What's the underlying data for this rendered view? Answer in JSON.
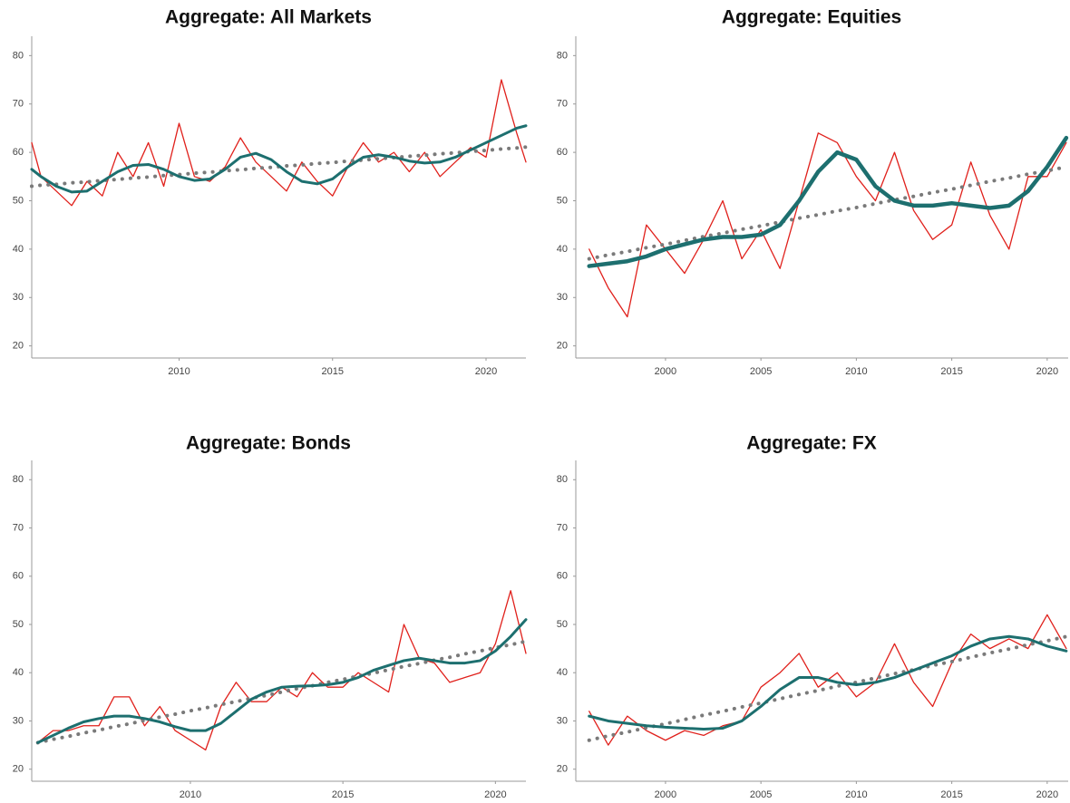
{
  "chart_data": [
    {
      "type": "line",
      "title": "Aggregate: All Markets",
      "x": [
        2005.2,
        2005.5,
        2006,
        2006.5,
        2007,
        2007.5,
        2008,
        2008.5,
        2009,
        2009.5,
        2010,
        2010.5,
        2011,
        2011.5,
        2012,
        2012.5,
        2013,
        2013.5,
        2014,
        2014.5,
        2015,
        2015.5,
        2016,
        2016.5,
        2017,
        2017.5,
        2018,
        2018.5,
        2019,
        2019.5,
        2020,
        2020.5,
        2021,
        2021.3
      ],
      "series": [
        {
          "color": "#e0201b",
          "style": "solid",
          "width": 1.3,
          "values": [
            62,
            55,
            52,
            49,
            54,
            51,
            60,
            55,
            62,
            53,
            66,
            55,
            54,
            57,
            63,
            58,
            55,
            52,
            58,
            54,
            51,
            57,
            62,
            58,
            60,
            56,
            60,
            55,
            58,
            61,
            59,
            75,
            64,
            58
          ]
        },
        {
          "color": "#7a7a7a",
          "style": "dotted",
          "width": 4,
          "values": [
            53,
            53.2,
            53.4,
            53.7,
            53.9,
            54.2,
            54.4,
            54.7,
            54.9,
            55.2,
            55.4,
            55.7,
            55.9,
            56.2,
            56.4,
            56.7,
            56.9,
            57.2,
            57.4,
            57.7,
            57.9,
            58.2,
            58.4,
            58.7,
            58.9,
            59.2,
            59.4,
            59.7,
            59.9,
            60.2,
            60.4,
            60.7,
            60.9,
            61.1
          ]
        },
        {
          "color": "#1d6f6f",
          "style": "solid",
          "width": 3,
          "values": [
            56.5,
            55,
            53,
            51.8,
            52,
            54,
            56,
            57.3,
            57.5,
            56.5,
            55,
            54.2,
            54.5,
            56.5,
            59,
            59.8,
            58.5,
            56,
            54,
            53.5,
            54.5,
            57,
            59,
            59.5,
            59,
            58.2,
            57.8,
            58,
            59,
            60.5,
            62,
            63.5,
            65,
            65.5
          ]
        }
      ],
      "xlim": [
        2005.2,
        2021.3
      ],
      "xticks": [
        2010,
        2015,
        2020
      ],
      "ylim": [
        17.5,
        84
      ],
      "yticks": [
        20,
        30,
        40,
        50,
        60,
        70,
        80
      ]
    },
    {
      "type": "line",
      "title": "Aggregate: Equities",
      "x": [
        1996,
        1997,
        1998,
        1999,
        2000,
        2001,
        2002,
        2003,
        2004,
        2005,
        2006,
        2007,
        2008,
        2009,
        2010,
        2011,
        2012,
        2013,
        2014,
        2015,
        2016,
        2017,
        2018,
        2019,
        2020,
        2021
      ],
      "series": [
        {
          "color": "#e0201b",
          "style": "solid",
          "width": 1.3,
          "values": [
            40,
            32,
            26,
            45,
            40,
            35,
            42,
            50,
            38,
            44,
            36,
            50,
            64,
            62,
            55,
            50,
            60,
            48,
            42,
            45,
            58,
            47,
            40,
            55,
            55,
            62
          ]
        },
        {
          "color": "#7a7a7a",
          "style": "dotted",
          "width": 4,
          "values": [
            38,
            38.8,
            39.5,
            40.3,
            41,
            41.8,
            42.6,
            43.3,
            44.1,
            44.8,
            45.6,
            46.4,
            47.1,
            47.9,
            48.6,
            49.4,
            50.2,
            50.9,
            51.7,
            52.4,
            53.2,
            54,
            54.7,
            55.5,
            56.2,
            57
          ]
        },
        {
          "color": "#1d6f6f",
          "style": "solid",
          "width": 4.5,
          "values": [
            36.5,
            37,
            37.5,
            38.5,
            40,
            41,
            42,
            42.5,
            42.5,
            43,
            45,
            50,
            56,
            60,
            58.5,
            53,
            50,
            49,
            49,
            49.5,
            49,
            48.5,
            49,
            52,
            57,
            63
          ]
        }
      ],
      "xlim": [
        1995.3,
        2021.1
      ],
      "xticks": [
        2000,
        2005,
        2010,
        2015,
        2020
      ],
      "ylim": [
        17.5,
        84
      ],
      "yticks": [
        20,
        30,
        40,
        50,
        60,
        70,
        80
      ]
    },
    {
      "type": "line",
      "title": "Aggregate: Bonds",
      "x": [
        2005,
        2005.5,
        2006,
        2006.5,
        2007,
        2007.5,
        2008,
        2008.5,
        2009,
        2009.5,
        2010,
        2010.5,
        2011,
        2011.5,
        2012,
        2012.5,
        2013,
        2013.5,
        2014,
        2014.5,
        2015,
        2015.5,
        2016,
        2016.5,
        2017,
        2017.5,
        2018,
        2018.5,
        2019,
        2019.5,
        2020,
        2020.5,
        2021
      ],
      "series": [
        {
          "color": "#e0201b",
          "style": "solid",
          "width": 1.3,
          "values": [
            25.5,
            28,
            28,
            29,
            29,
            35,
            35,
            29,
            33,
            28,
            26,
            24,
            33,
            38,
            34,
            34,
            37,
            35,
            40,
            37,
            37,
            40,
            38,
            36,
            50,
            43,
            42,
            38,
            39,
            40,
            46,
            57,
            44
          ]
        },
        {
          "color": "#7a7a7a",
          "style": "dotted",
          "width": 4,
          "values": [
            25.5,
            26.2,
            26.8,
            27.5,
            28.1,
            28.8,
            29.4,
            30.1,
            30.8,
            31.4,
            32.1,
            32.7,
            33.4,
            34.0,
            34.7,
            35.3,
            36.0,
            36.7,
            37.3,
            38.0,
            38.6,
            39.3,
            39.9,
            40.6,
            41.3,
            41.9,
            42.6,
            43.2,
            43.9,
            44.5,
            45.2,
            45.8,
            46.5
          ]
        },
        {
          "color": "#1d6f6f",
          "style": "solid",
          "width": 3,
          "values": [
            25.5,
            27,
            28.5,
            29.8,
            30.5,
            31,
            31,
            30.5,
            29.8,
            28.8,
            28,
            28,
            29.5,
            32,
            34.5,
            36,
            37,
            37.2,
            37.3,
            37.5,
            38,
            39,
            40.5,
            41.5,
            42.5,
            43,
            42.5,
            42,
            42,
            42.5,
            44.5,
            47.5,
            51
          ]
        }
      ],
      "xlim": [
        2004.8,
        2021.0
      ],
      "xticks": [
        2010,
        2015,
        2020
      ],
      "ylim": [
        17.5,
        84
      ],
      "yticks": [
        20,
        30,
        40,
        50,
        60,
        70,
        80
      ]
    },
    {
      "type": "line",
      "title": "Aggregate: FX",
      "x": [
        1996,
        1997,
        1998,
        1999,
        2000,
        2001,
        2002,
        2003,
        2004,
        2005,
        2006,
        2007,
        2008,
        2009,
        2010,
        2011,
        2012,
        2013,
        2014,
        2015,
        2016,
        2017,
        2018,
        2019,
        2020,
        2021
      ],
      "series": [
        {
          "color": "#e0201b",
          "style": "solid",
          "width": 1.3,
          "values": [
            32,
            25,
            31,
            28,
            26,
            28,
            27,
            29,
            30,
            37,
            40,
            44,
            37,
            40,
            35,
            38,
            46,
            38,
            33,
            42,
            48,
            45,
            47,
            45,
            52,
            45
          ]
        },
        {
          "color": "#7a7a7a",
          "style": "dotted",
          "width": 4,
          "values": [
            26,
            26.9,
            27.7,
            28.6,
            29.4,
            30.3,
            31.2,
            32,
            32.9,
            33.7,
            34.6,
            35.5,
            36.3,
            37.2,
            38,
            38.9,
            39.8,
            40.6,
            41.5,
            42.3,
            43.2,
            44.1,
            44.9,
            45.8,
            46.6,
            47.5
          ]
        },
        {
          "color": "#1d6f6f",
          "style": "solid",
          "width": 3,
          "values": [
            31,
            30,
            29.5,
            29,
            28.7,
            28.5,
            28.3,
            28.5,
            30,
            33,
            36.5,
            39,
            39,
            38,
            37.5,
            38,
            39,
            40.5,
            42,
            43.5,
            45.5,
            47,
            47.5,
            47,
            45.5,
            44.5
          ]
        }
      ],
      "xlim": [
        1995.3,
        2021.1
      ],
      "xticks": [
        2000,
        2005,
        2010,
        2015,
        2020
      ],
      "ylim": [
        17.5,
        84
      ],
      "yticks": [
        20,
        30,
        40,
        50,
        60,
        70,
        80
      ]
    }
  ]
}
